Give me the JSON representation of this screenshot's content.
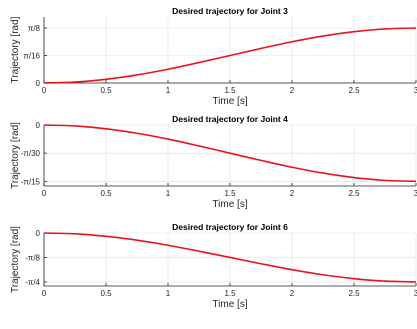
{
  "chart_data": [
    {
      "type": "line",
      "title": "Desired trajectory for Joint 3",
      "xlabel": "Time [s]",
      "ylabel": "Trajectory [rad]",
      "xlim": [
        0,
        3
      ],
      "ylim": [
        0,
        0.4712
      ],
      "xticks": [
        0,
        0.5,
        1,
        1.5,
        2,
        2.5,
        3
      ],
      "xtick_labels": [
        "0",
        "0.5",
        "1",
        "1.5",
        "2",
        "2.5",
        "3"
      ],
      "yticks": [
        0,
        0.19635,
        0.3927
      ],
      "ytick_labels": [
        "0",
        "π/16",
        "π/8"
      ],
      "grid": true,
      "series": [
        {
          "color": "#e8141b",
          "x": [
            0,
            0.25,
            0.5,
            0.75,
            1.0,
            1.25,
            1.5,
            1.75,
            2.0,
            2.25,
            2.5,
            2.75,
            3.0
          ],
          "y": [
            0,
            0.0067,
            0.0263,
            0.0575,
            0.0982,
            0.146,
            0.1963,
            0.2467,
            0.2945,
            0.3352,
            0.3664,
            0.386,
            0.3927
          ]
        }
      ]
    },
    {
      "type": "line",
      "title": "Desired trajectory for Joint 4",
      "xlabel": "Time [s]",
      "ylabel": "Trajectory [rad]",
      "xlim": [
        0,
        3
      ],
      "ylim": [
        -0.2268,
        0
      ],
      "xticks": [
        0,
        0.5,
        1,
        1.5,
        2,
        2.5,
        3
      ],
      "xtick_labels": [
        "0",
        "0.5",
        "1",
        "1.5",
        "2",
        "2.5",
        "3"
      ],
      "yticks": [
        0,
        -0.10472,
        -0.20944
      ],
      "ytick_labels": [
        "0",
        "-π/30",
        "-π/15"
      ],
      "grid": true,
      "series": [
        {
          "color": "#e8141b",
          "x": [
            0,
            0.25,
            0.5,
            0.75,
            1.0,
            1.25,
            1.5,
            1.75,
            2.0,
            2.25,
            2.5,
            2.75,
            3.0
          ],
          "y": [
            0,
            -0.0036,
            -0.014,
            -0.0307,
            -0.0524,
            -0.0779,
            -0.1047,
            -0.1316,
            -0.1571,
            -0.1788,
            -0.1954,
            -0.2059,
            -0.2094
          ]
        }
      ]
    },
    {
      "type": "line",
      "title": "Desired trajectory for Joint 6",
      "xlabel": "Time [s]",
      "ylabel": "Trajectory [rad]",
      "xlim": [
        0,
        3
      ],
      "ylim": [
        -0.8508,
        0
      ],
      "xticks": [
        0,
        0.5,
        1,
        1.5,
        2,
        2.5,
        3
      ],
      "xtick_labels": [
        "0",
        "0.5",
        "1",
        "1.5",
        "2",
        "2.5",
        "3"
      ],
      "yticks": [
        0,
        -0.3927,
        -0.7854
      ],
      "ytick_labels": [
        "0",
        "-π/8",
        "-π/4"
      ],
      "grid": true,
      "series": [
        {
          "color": "#e8141b",
          "x": [
            0,
            0.25,
            0.5,
            0.75,
            1.0,
            1.25,
            1.5,
            1.75,
            2.0,
            2.25,
            2.5,
            2.75,
            3.0
          ],
          "y": [
            0,
            -0.0134,
            -0.0526,
            -0.115,
            -0.1963,
            -0.292,
            -0.3927,
            -0.4934,
            -0.5891,
            -0.6704,
            -0.7328,
            -0.772,
            -0.7854
          ]
        }
      ]
    }
  ]
}
